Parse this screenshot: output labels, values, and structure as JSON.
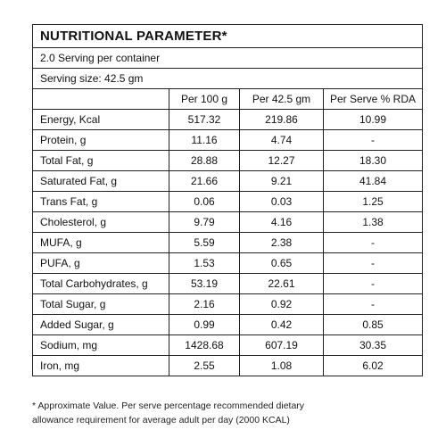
{
  "title": "NUTRITIONAL PARAMETER*",
  "servings_per_container": "2.0 Serving per container",
  "serving_size": "Serving size: 42.5 gm",
  "columns": [
    "",
    "Per 100 g",
    "Per 42.5 gm",
    "Per Serve % RDA"
  ],
  "rows": [
    {
      "name": "Energy, Kcal",
      "per100": "517.32",
      "perServe": "219.86",
      "rda": "10.99"
    },
    {
      "name": "Protein, g",
      "per100": "11.16",
      "perServe": "4.74",
      "rda": "-"
    },
    {
      "name": "Total Fat, g",
      "per100": "28.88",
      "perServe": "12.27",
      "rda": "18.30"
    },
    {
      "name": "Saturated Fat, g",
      "per100": "21.66",
      "perServe": "9.21",
      "rda": "41.84"
    },
    {
      "name": "Trans Fat, g",
      "per100": "0.06",
      "perServe": "0.03",
      "rda": "1.25"
    },
    {
      "name": "Cholesterol, g",
      "per100": "9.79",
      "perServe": "4.16",
      "rda": "1.38"
    },
    {
      "name": "MUFA, g",
      "per100": "5.59",
      "perServe": "2.38",
      "rda": "-"
    },
    {
      "name": "PUFA, g",
      "per100": "1.53",
      "perServe": "0.65",
      "rda": "-"
    },
    {
      "name": "Total Carbohydrates, g",
      "per100": "53.19",
      "perServe": "22.61",
      "rda": "-"
    },
    {
      "name": "Total Sugar, g",
      "per100": "2.16",
      "perServe": "0.92",
      "rda": "-"
    },
    {
      "name": "Added Sugar, g",
      "per100": "0.99",
      "perServe": "0.42",
      "rda": "0.85"
    },
    {
      "name": "Sodium, mg",
      "per100": "1428.68",
      "perServe": "607.19",
      "rda": "30.35"
    },
    {
      "name": "Iron, mg",
      "per100": "2.55",
      "perServe": "1.08",
      "rda": "6.02"
    }
  ],
  "footnote": {
    "line1": "* Approximate Value. Per serve percentage recommended dietary",
    "line2": "allowance requirement for average adult per day (2000 KCAL)"
  }
}
